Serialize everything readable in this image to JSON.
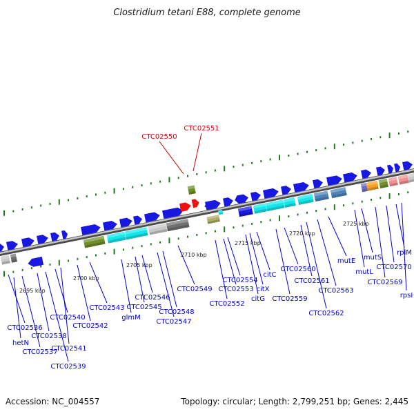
{
  "title": "Clostridium tetani E88, complete genome",
  "footer": {
    "accession": "Accession: NC_004557",
    "summary": "Topology: circular; Length: 2,799,251 bp; Genes: 2,445"
  },
  "colors": {
    "backbone": "#8c8c8c",
    "tick": "#1f7a1f",
    "label_blue": "#0000cc",
    "label_red": "#cc0000",
    "gene_blue": "#1818e0",
    "gene_red": "#ee1111",
    "olive": "#6f8f2a",
    "cyan": "#13e6ea",
    "gray": "#c8c8c8",
    "dark_gray": "#707070",
    "steel": "#4f82b8",
    "khaki": "#b0aa66",
    "slate": "#6e6ec0",
    "orange": "#f5a020",
    "pink": "#f09090"
  },
  "scale_ticks": [
    {
      "label": "2695 kbp"
    },
    {
      "label": "2700 kbp"
    },
    {
      "label": "2705 kbp"
    },
    {
      "label": "2710 kbp"
    },
    {
      "label": "2715 kbp"
    },
    {
      "label": "2720 kbp"
    },
    {
      "label": "2725 kbp"
    }
  ],
  "gene_labels": [
    {
      "name": "CTC02536",
      "color": "blue"
    },
    {
      "name": "hetN",
      "color": "blue"
    },
    {
      "name": "CTC02537",
      "color": "blue"
    },
    {
      "name": "CTC02538",
      "color": "blue"
    },
    {
      "name": "CTC02539",
      "color": "blue"
    },
    {
      "name": "CTC02540",
      "color": "blue"
    },
    {
      "name": "CTC02541",
      "color": "blue"
    },
    {
      "name": "CTC02542",
      "color": "blue"
    },
    {
      "name": "CTC02543",
      "color": "blue"
    },
    {
      "name": "glmM",
      "color": "blue"
    },
    {
      "name": "CTC02545",
      "color": "blue"
    },
    {
      "name": "CTC02546",
      "color": "blue"
    },
    {
      "name": "CTC02547",
      "color": "blue"
    },
    {
      "name": "CTC02548",
      "color": "blue"
    },
    {
      "name": "CTC02549",
      "color": "blue"
    },
    {
      "name": "CTC02550",
      "color": "red"
    },
    {
      "name": "CTC02551",
      "color": "red"
    },
    {
      "name": "CTC02552",
      "color": "blue"
    },
    {
      "name": "CTC02553",
      "color": "blue"
    },
    {
      "name": "CTC02554",
      "color": "blue"
    },
    {
      "name": "citG",
      "color": "blue"
    },
    {
      "name": "citX",
      "color": "blue"
    },
    {
      "name": "citC",
      "color": "blue"
    },
    {
      "name": "CTC02559",
      "color": "blue"
    },
    {
      "name": "CTC02560",
      "color": "blue"
    },
    {
      "name": "CTC02561",
      "color": "blue"
    },
    {
      "name": "CTC02562",
      "color": "blue"
    },
    {
      "name": "CTC02563",
      "color": "blue"
    },
    {
      "name": "mutE",
      "color": "blue"
    },
    {
      "name": "mutL",
      "color": "blue"
    },
    {
      "name": "mutS",
      "color": "blue"
    },
    {
      "name": "CTC02569",
      "color": "blue"
    },
    {
      "name": "CTC02570",
      "color": "blue"
    },
    {
      "name": "rplM",
      "color": "blue"
    },
    {
      "name": "rpsI",
      "color": "blue"
    }
  ]
}
